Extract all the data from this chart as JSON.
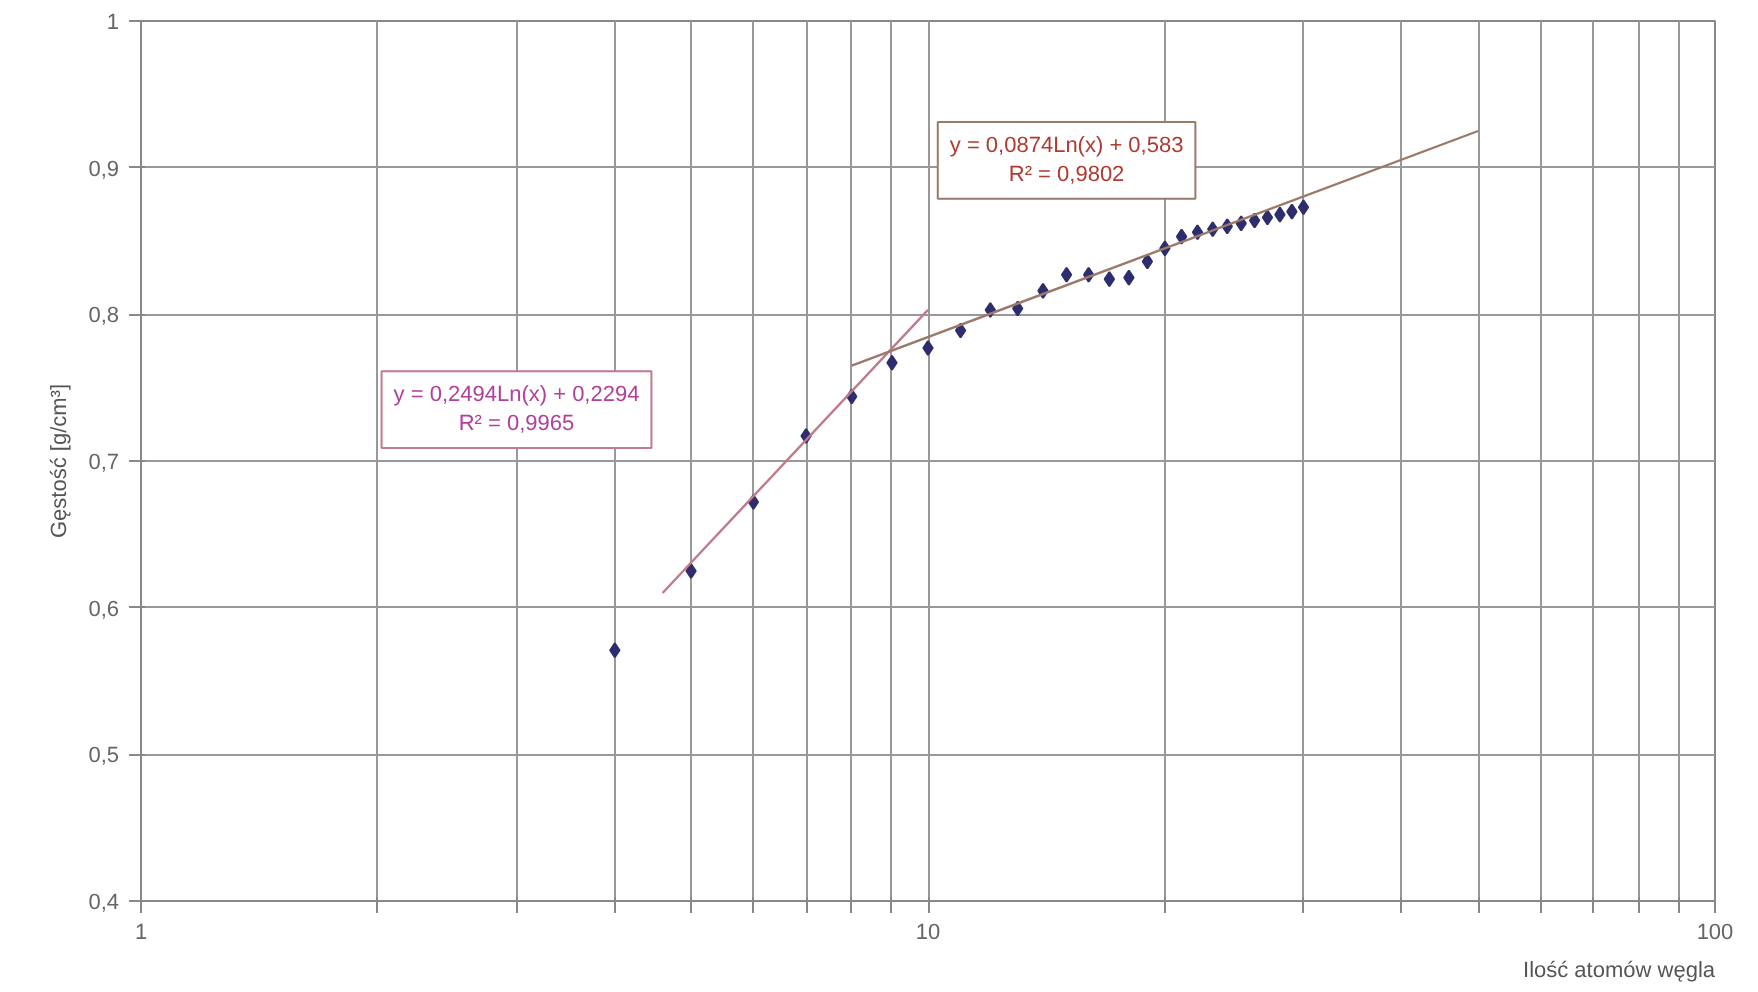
{
  "chart_data": {
    "type": "scatter",
    "xlabel": "Ilość atomów węgla",
    "ylabel": "Gęstość [g/cm³]",
    "log": "x",
    "grid": true,
    "xlim": [
      1,
      100
    ],
    "ylim": [
      0.4,
      1
    ],
    "xticks": [
      1,
      {
        "value": 2,
        "label": null
      },
      {
        "value": 3,
        "label": null
      },
      {
        "value": 4,
        "label": null
      },
      {
        "value": 5,
        "label": null
      },
      {
        "value": 6,
        "label": null
      },
      {
        "value": 7,
        "label": null
      },
      {
        "value": 8,
        "label": null
      },
      {
        "value": 9,
        "label": null
      },
      10,
      {
        "value": 20,
        "label": null
      },
      {
        "value": 30,
        "label": null
      },
      {
        "value": 40,
        "label": null
      },
      {
        "value": 50,
        "label": null
      },
      {
        "value": 60,
        "label": null
      },
      {
        "value": 70,
        "label": null
      },
      {
        "value": 80,
        "label": null
      },
      {
        "value": 90,
        "label": null
      },
      100
    ],
    "yticks": [
      {
        "value": 0.4,
        "label": "0,4"
      },
      {
        "value": 0.5,
        "label": "0,5"
      },
      {
        "value": 0.6,
        "label": "0,6"
      },
      {
        "value": 0.7,
        "label": "0,7"
      },
      {
        "value": 0.8,
        "label": "0,8"
      },
      {
        "value": 0.9,
        "label": "0,9"
      },
      1
    ],
    "series": [
      {
        "marker": "diamond",
        "color": "#2e2e6e",
        "x": [
          4,
          5,
          6,
          7,
          8,
          9,
          10,
          11,
          12,
          13,
          14,
          15,
          16,
          17,
          18,
          19,
          20,
          21,
          22,
          23,
          24,
          25,
          26,
          27,
          28,
          29,
          30
        ],
        "values": [
          0.571,
          0.625,
          0.672,
          0.717,
          0.744,
          0.767,
          0.777,
          0.789,
          0.803,
          0.804,
          0.816,
          0.827,
          0.827,
          0.824,
          0.825,
          0.836,
          0.845,
          0.853,
          0.856,
          0.858,
          0.86,
          0.862,
          0.864,
          0.866,
          0.868,
          0.87,
          0.873
        ]
      },
      {
        "type": "line",
        "marker": "none",
        "color": "#c07a8a",
        "x": [
          4.6,
          10
        ],
        "values": [
          0.61,
          0.803
        ]
      },
      {
        "type": "line",
        "marker": "none",
        "color": "#9a7a6a",
        "x": [
          8,
          50
        ],
        "values": [
          0.765,
          0.925
        ]
      }
    ],
    "annotations": [
      "y = 0,2494Ln(x) + 0,2294\nR² = 0,9965",
      "y = 0,0874Ln(x) + 0,583\nR² = 0,9802"
    ]
  }
}
